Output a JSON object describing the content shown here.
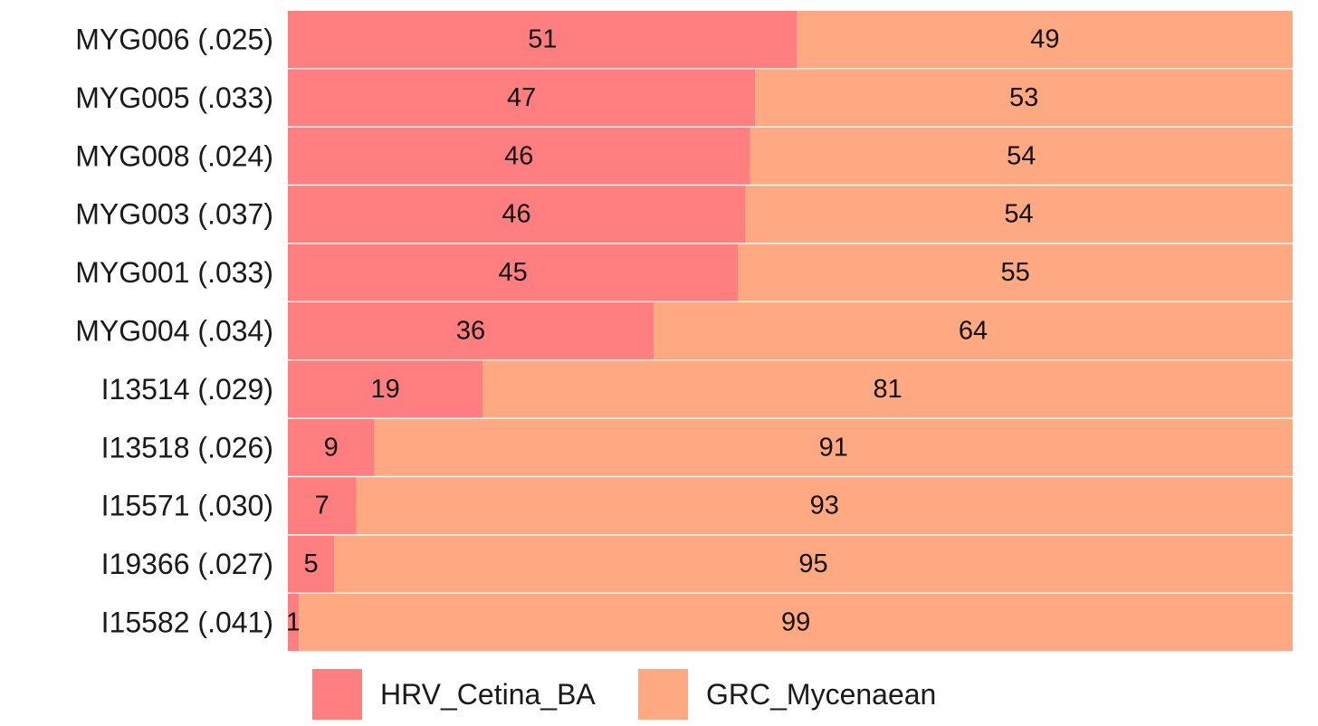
{
  "chart_data": {
    "type": "bar",
    "orientation": "horizontal",
    "stacked": true,
    "percent": true,
    "categories": [
      "MYG006 (.025)",
      "MYG005 (.033)",
      "MYG008 (.024)",
      "MYG003 (.037)",
      "MYG001 (.033)",
      "MYG004 (.034)",
      "I13514 (.029)",
      "I13518 (.026)",
      "I15571 (.030)",
      "I19366 (.027)",
      "I15582 (.041)"
    ],
    "series": [
      {
        "name": "HRV_Cetina_BA",
        "color": "#ff7f80",
        "values": [
          50.7,
          46.5,
          46.0,
          45.5,
          44.8,
          36.4,
          19.4,
          8.6,
          6.8,
          4.6,
          1.1
        ],
        "labels": [
          "51",
          "47",
          "46",
          "46",
          "45",
          "36",
          "19",
          "9",
          "7",
          "5",
          "1"
        ]
      },
      {
        "name": "GRC_Mycenaean",
        "color": "#ffa982",
        "values": [
          49.3,
          53.5,
          54.0,
          54.5,
          55.2,
          63.6,
          80.6,
          91.4,
          93.2,
          95.4,
          98.9
        ],
        "labels": [
          "49",
          "53",
          "54",
          "54",
          "55",
          "64",
          "81",
          "91",
          "93",
          "95",
          "99"
        ]
      }
    ],
    "xlim": [
      0,
      100
    ],
    "grid": false,
    "legend": "bottom"
  }
}
